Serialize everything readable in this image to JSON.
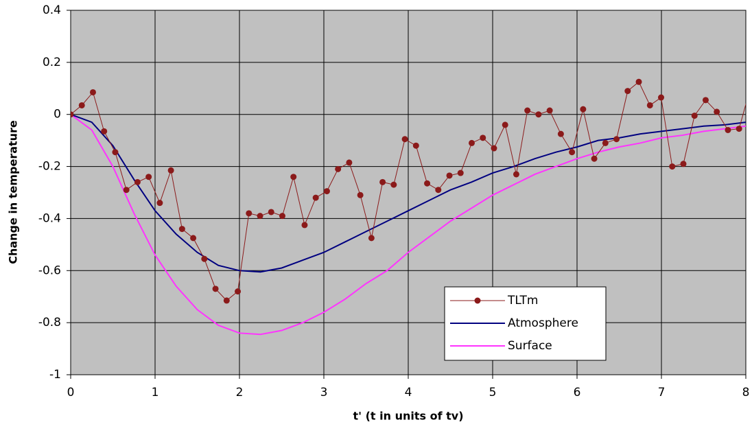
{
  "chart_data": {
    "type": "line",
    "xlabel": "t' (t in units of tv)",
    "ylabel": "Change in temperature",
    "xlim": [
      0,
      8
    ],
    "xticks": [
      0,
      1,
      2,
      3,
      4,
      5,
      6,
      7,
      8
    ],
    "ylim": [
      -1,
      0.4
    ],
    "yticks": [
      -1,
      -0.8,
      -0.6,
      -0.4,
      -0.2,
      0,
      0.2,
      0.4
    ],
    "grid": true,
    "legend": "lower right",
    "series": [
      {
        "name": "TLTm",
        "color": "#8b1a1a",
        "marker": "circle",
        "x": [
          0,
          0.132,
          0.264,
          0.396,
          0.528,
          0.66,
          0.792,
          0.924,
          1.056,
          1.188,
          1.32,
          1.452,
          1.584,
          1.716,
          1.848,
          1.98,
          2.112,
          2.244,
          2.376,
          2.508,
          2.64,
          2.772,
          2.904,
          3.036,
          3.168,
          3.3,
          3.432,
          3.564,
          3.696,
          3.828,
          3.96,
          4.092,
          4.224,
          4.356,
          4.488,
          4.62,
          4.752,
          4.884,
          5.016,
          5.148,
          5.28,
          5.412,
          5.544,
          5.676,
          5.808,
          5.94,
          6.072,
          6.204,
          6.336,
          6.468,
          6.6,
          6.732,
          6.864,
          6.996,
          7.128,
          7.26,
          7.392,
          7.524,
          7.656,
          7.788,
          7.92,
          8.052
        ],
        "values": [
          0,
          0.035,
          0.085,
          -0.065,
          -0.145,
          -0.29,
          -0.26,
          -0.24,
          -0.34,
          -0.215,
          -0.44,
          -0.475,
          -0.555,
          -0.67,
          -0.715,
          -0.68,
          -0.38,
          -0.39,
          -0.375,
          -0.39,
          -0.24,
          -0.425,
          -0.32,
          -0.295,
          -0.21,
          -0.185,
          -0.31,
          -0.475,
          -0.26,
          -0.27,
          -0.095,
          -0.12,
          -0.265,
          -0.29,
          -0.235,
          -0.225,
          -0.11,
          -0.09,
          -0.13,
          -0.04,
          -0.23,
          0.015,
          0,
          0.015,
          -0.075,
          -0.145,
          0.02,
          -0.17,
          -0.11,
          -0.095,
          0.09,
          0.125,
          0.035,
          0.065,
          -0.2,
          -0.19,
          -0.005,
          0.055,
          0.01,
          -0.06,
          -0.055,
          0.1
        ]
      },
      {
        "name": "Atmosphere",
        "color": "#000080",
        "x": [
          0,
          0.25,
          0.5,
          0.75,
          1,
          1.25,
          1.5,
          1.75,
          2,
          2.25,
          2.5,
          2.75,
          3,
          3.25,
          3.5,
          3.75,
          4,
          4.25,
          4.5,
          4.75,
          5,
          5.25,
          5.5,
          5.75,
          6,
          6.25,
          6.5,
          6.75,
          7,
          7.25,
          7.5,
          7.75,
          8
        ],
        "values": [
          0,
          -0.03,
          -0.12,
          -0.25,
          -0.37,
          -0.46,
          -0.53,
          -0.58,
          -0.6,
          -0.605,
          -0.59,
          -0.56,
          -0.53,
          -0.49,
          -0.45,
          -0.41,
          -0.37,
          -0.33,
          -0.29,
          -0.26,
          -0.225,
          -0.2,
          -0.17,
          -0.145,
          -0.125,
          -0.1,
          -0.09,
          -0.075,
          -0.065,
          -0.055,
          -0.045,
          -0.04,
          -0.03
        ]
      },
      {
        "name": "Surface",
        "color": "#ff33ff",
        "x": [
          0,
          0.25,
          0.5,
          0.75,
          1,
          1.25,
          1.5,
          1.75,
          2,
          2.25,
          2.5,
          2.75,
          3,
          3.25,
          3.5,
          3.75,
          4,
          4.25,
          4.5,
          4.75,
          5,
          5.25,
          5.5,
          5.75,
          6,
          6.25,
          6.5,
          6.75,
          7,
          7.25,
          7.5,
          7.75,
          8
        ],
        "values": [
          0,
          -0.06,
          -0.2,
          -0.38,
          -0.54,
          -0.66,
          -0.75,
          -0.81,
          -0.84,
          -0.845,
          -0.83,
          -0.8,
          -0.76,
          -0.71,
          -0.65,
          -0.6,
          -0.53,
          -0.47,
          -0.41,
          -0.36,
          -0.31,
          -0.27,
          -0.23,
          -0.2,
          -0.17,
          -0.145,
          -0.125,
          -0.11,
          -0.09,
          -0.08,
          -0.065,
          -0.055,
          -0.045
        ]
      }
    ]
  }
}
